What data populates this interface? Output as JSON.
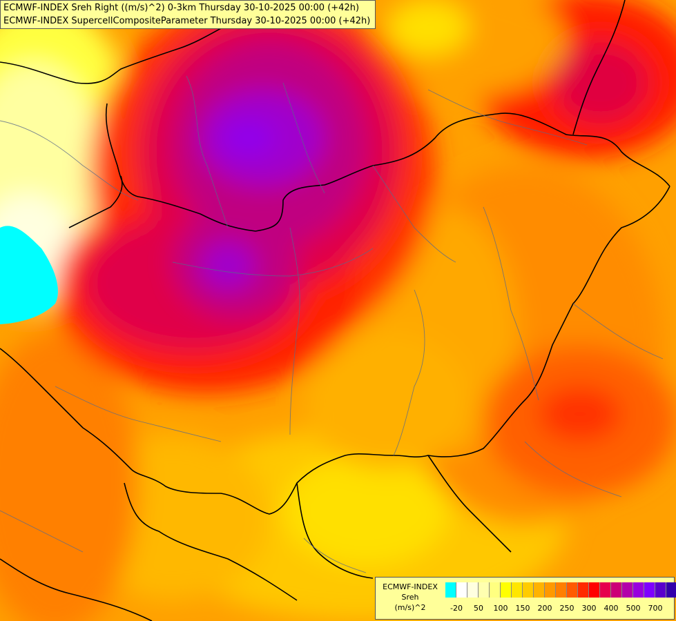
{
  "title": {
    "line1": "ECMWF-INDEX Sreh Right ((m/s)^2) 0-3km Thursday 30-10-2025 00:00 (+42h)",
    "line2": "ECMWF-INDEX SupercellCompositeParameter Thursday 30-10-2025 00:00 (+42h)"
  },
  "legend": {
    "line1": "ECMWF-INDEX",
    "line2": "Sreh",
    "line3": "(m/s)^2",
    "colors": [
      "#00ffff",
      "#ffffff",
      "#ffffe0",
      "#ffffb0",
      "#ffff80",
      "#ffff00",
      "#ffe600",
      "#ffcc00",
      "#ffb300",
      "#ff9900",
      "#ff7f00",
      "#ff5a00",
      "#ff2a00",
      "#ff0000",
      "#e6004d",
      "#cc0077",
      "#b300aa",
      "#9900dd",
      "#7f00ff",
      "#5a00cc",
      "#3300aa",
      "#1a0080"
    ],
    "ticks": [
      "-20",
      "50",
      "100",
      "150",
      "200",
      "250",
      "300",
      "400",
      "500",
      "700"
    ]
  }
}
